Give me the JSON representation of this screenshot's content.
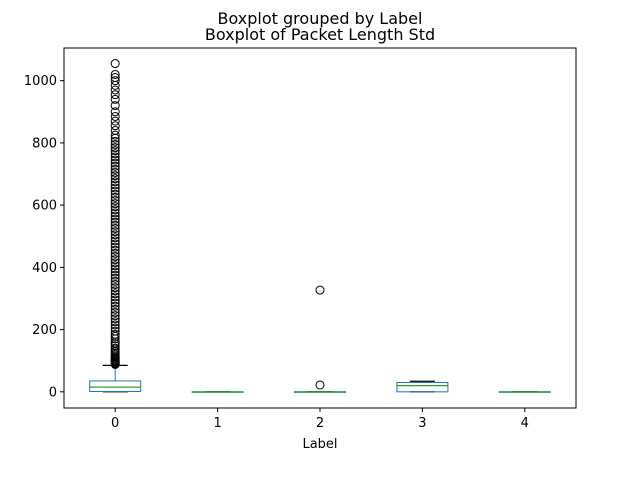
{
  "figure": {
    "suptitle": "Boxplot grouped by Label",
    "title": "Boxplot of Packet Length Std"
  },
  "chart_data": {
    "type": "box",
    "title": "Boxplot of Packet Length Std",
    "suptitle": "Boxplot grouped by Label",
    "xlabel": "Label",
    "ylabel": "",
    "categories": [
      "0",
      "1",
      "2",
      "3",
      "4"
    ],
    "y_ticks": [
      0,
      200,
      400,
      600,
      800,
      1000
    ],
    "ylim": [
      -52,
      1105
    ],
    "grid": false,
    "colors": {
      "box": "#1f77b4",
      "median": "#2ca02c",
      "whisker": "#000000",
      "flier": "#000000"
    },
    "boxes": [
      {
        "label": "0",
        "whislo": 0,
        "q1": 1,
        "med": 15,
        "q3": 35,
        "whishi": 85,
        "fliers": [
          88,
          90,
          93,
          95,
          98,
          100,
          103,
          107,
          110,
          115,
          120,
          125,
          130,
          135,
          140,
          148,
          155,
          160,
          170,
          178,
          185,
          195,
          205,
          215,
          225,
          235,
          245,
          255,
          265,
          275,
          285,
          295,
          305,
          315,
          325,
          335,
          345,
          355,
          365,
          375,
          385,
          395,
          405,
          415,
          425,
          435,
          445,
          455,
          465,
          475,
          485,
          495,
          505,
          515,
          525,
          535,
          545,
          555,
          565,
          575,
          585,
          595,
          605,
          615,
          625,
          635,
          645,
          655,
          665,
          675,
          685,
          695,
          705,
          715,
          725,
          735,
          745,
          755,
          765,
          775,
          785,
          795,
          805,
          815,
          825,
          840,
          855,
          870,
          885,
          900,
          920,
          940,
          955,
          970,
          985,
          1000,
          1010,
          1020,
          1055
        ]
      },
      {
        "label": "1",
        "whislo": 0,
        "q1": 0,
        "med": 0,
        "q3": 0,
        "whishi": 0,
        "fliers": []
      },
      {
        "label": "2",
        "whislo": 0,
        "q1": 0,
        "med": 0,
        "q3": 0,
        "whishi": 0,
        "fliers": [
          22,
          327
        ]
      },
      {
        "label": "3",
        "whislo": 0,
        "q1": 0,
        "med": 20,
        "q3": 30,
        "whishi": 34,
        "fliers": []
      },
      {
        "label": "4",
        "whislo": 0,
        "q1": 0,
        "med": 0,
        "q3": 0,
        "whishi": 0,
        "fliers": []
      }
    ]
  }
}
